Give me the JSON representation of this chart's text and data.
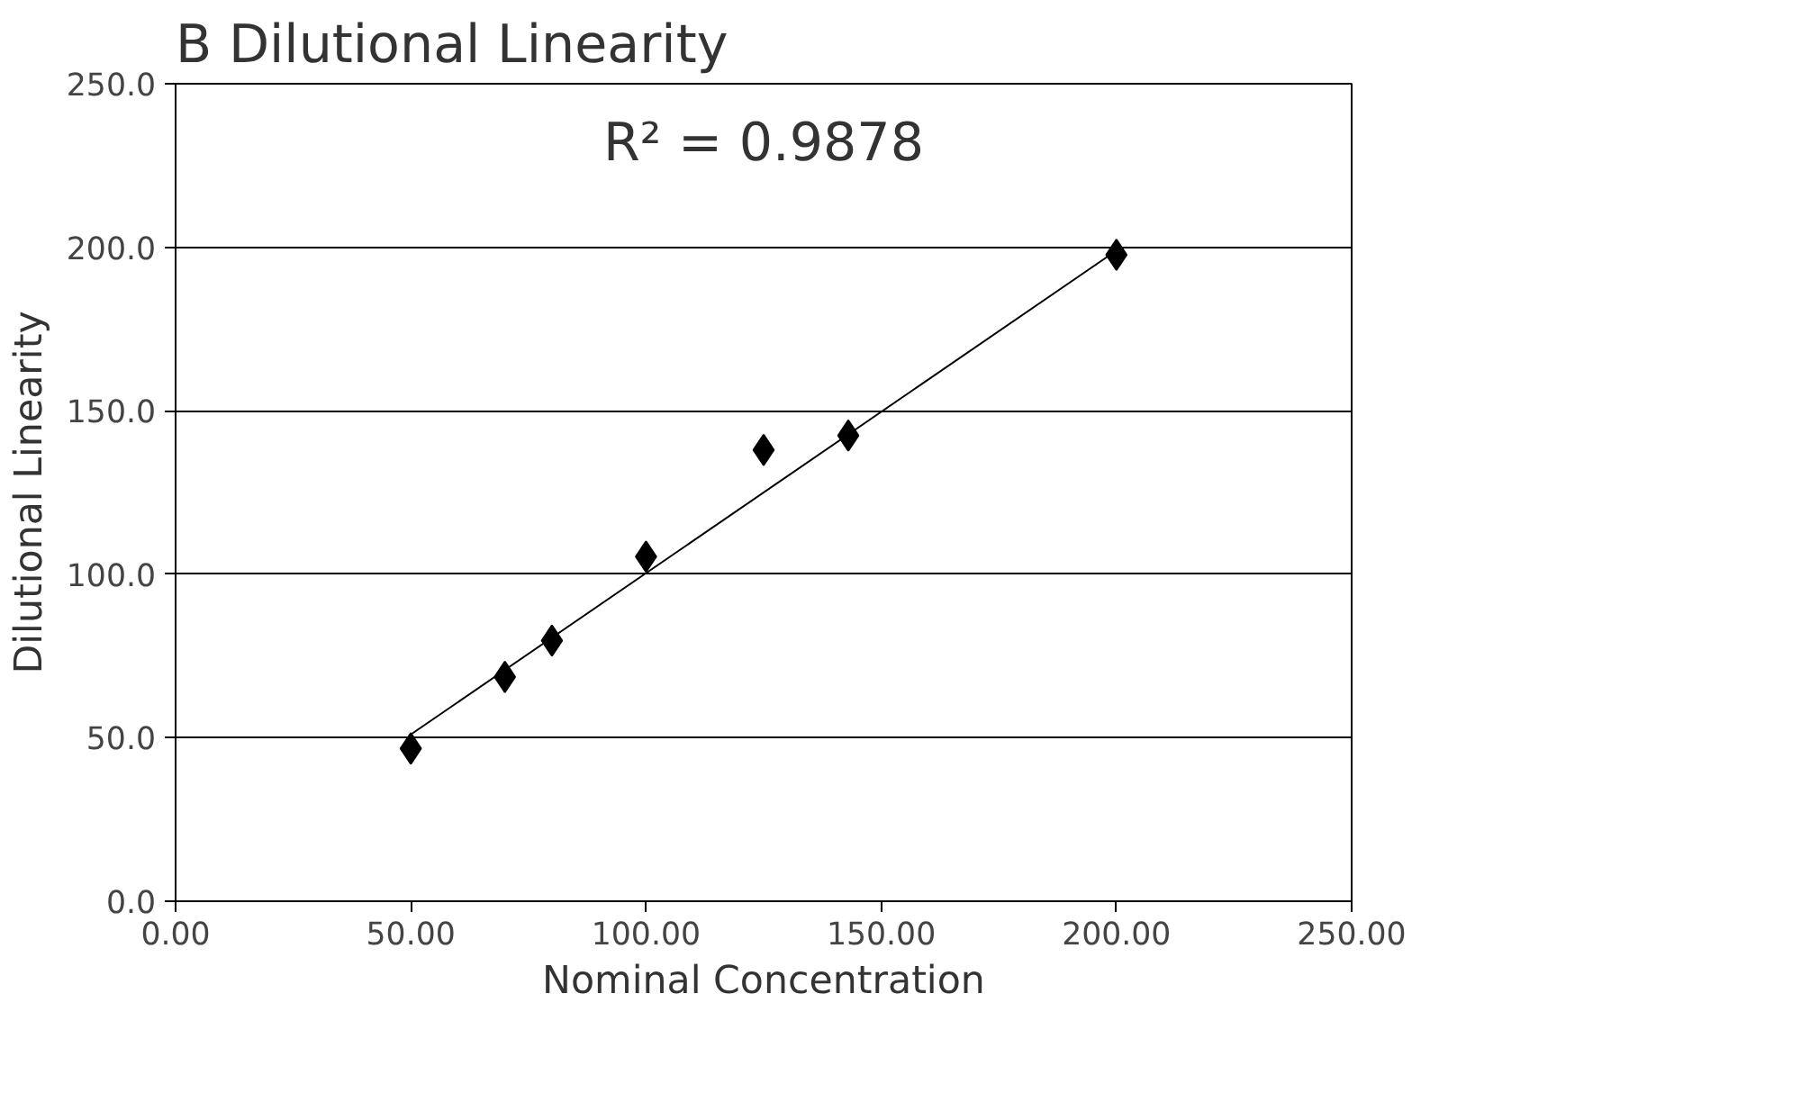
{
  "chart_data": {
    "type": "scatter",
    "title": "B    Dilutional Linearity",
    "xlabel": "Nominal Concentration",
    "ylabel": "Dilutional Linearity",
    "x": [
      50,
      70,
      80,
      100,
      125,
      143,
      200
    ],
    "series": [
      {
        "color": "#000000",
        "marker": "diamond",
        "values": [
          46.7,
          68.6,
          79.7,
          105.4,
          138,
          142.4,
          197.7
        ]
      },
      {
        "type": "line",
        "color": "#000000",
        "marker": "none",
        "x": [
          50,
          200
        ],
        "values": [
          51,
          199
        ]
      }
    ],
    "xlim": [
      0,
      250
    ],
    "xticks": [
      {
        "value": 0,
        "label": "0.00"
      },
      {
        "value": 50,
        "label": "50.00"
      },
      {
        "value": 100,
        "label": "100.00"
      },
      {
        "value": 150,
        "label": "150.00"
      },
      {
        "value": 200,
        "label": "200.00"
      },
      {
        "value": 250,
        "label": "250.00"
      }
    ],
    "ylim": [
      0,
      250
    ],
    "yticks": [
      {
        "value": 0,
        "label": "0.0"
      },
      {
        "value": 50,
        "label": "50.0"
      },
      {
        "value": 100,
        "label": "100.0"
      },
      {
        "value": 150,
        "label": "150.0"
      },
      {
        "value": 200,
        "label": "200.0"
      },
      {
        "value": 250,
        "label": "250.0"
      }
    ],
    "grid": "y",
    "annotations": [
      "R² = 0.9878"
    ]
  }
}
